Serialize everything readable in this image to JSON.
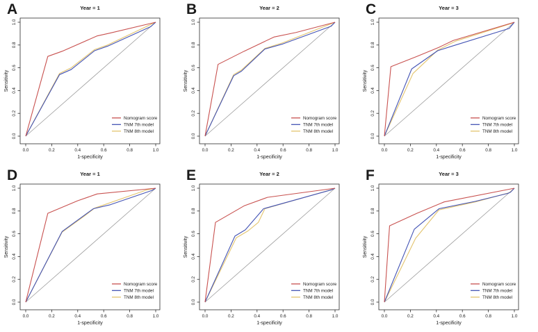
{
  "figure": {
    "background": "#ffffff",
    "axis": {
      "x_label": "1-specificity",
      "y_label": "Sensitivity",
      "tick_labels": [
        "0.0",
        "0.2",
        "0.4",
        "0.6",
        "0.8",
        "1.0"
      ],
      "tick_values": [
        0.0,
        0.2,
        0.4,
        0.6,
        0.8,
        1.0
      ],
      "x_range": [
        0,
        1
      ],
      "y_range": [
        0,
        1
      ],
      "box_color": "#2b2b2b",
      "grid": "off"
    },
    "legend": {
      "position": "bottom-right",
      "entries": [
        "Nomogram score",
        "TNM 7th model",
        "TNM 8th model"
      ]
    },
    "colors": {
      "nomogram": "#c8514f",
      "tnm7": "#4353b4",
      "tnm8": "#e3c46e",
      "reference": "#9b9b9b"
    }
  },
  "chart_data": [
    {
      "type": "line",
      "panel_label": "A",
      "title": "Year = 1",
      "xlabel": "1-specificity",
      "ylabel": "Sensitivity",
      "xlim": [
        0,
        1
      ],
      "ylim": [
        0,
        1
      ],
      "reference_line": [
        [
          0,
          0
        ],
        [
          1,
          1
        ]
      ],
      "series": [
        {
          "name": "Nomogram score",
          "color": "#c8514f",
          "points": [
            [
              0,
              0
            ],
            [
              0.17,
              0.7
            ],
            [
              0.28,
              0.745
            ],
            [
              0.55,
              0.88
            ],
            [
              0.65,
              0.905
            ],
            [
              1,
              1
            ]
          ]
        },
        {
          "name": "TNM 7th model",
          "color": "#4353b4",
          "points": [
            [
              0,
              0
            ],
            [
              0.26,
              0.54
            ],
            [
              0.35,
              0.585
            ],
            [
              0.53,
              0.75
            ],
            [
              0.63,
              0.79
            ],
            [
              0.96,
              0.96
            ],
            [
              1,
              1
            ]
          ]
        },
        {
          "name": "TNM 8th model",
          "color": "#e3c46e",
          "points": [
            [
              0,
              0
            ],
            [
              0.26,
              0.55
            ],
            [
              0.35,
              0.6
            ],
            [
              0.53,
              0.76
            ],
            [
              0.63,
              0.8
            ],
            [
              0.97,
              0.985
            ],
            [
              1,
              1
            ]
          ]
        }
      ]
    },
    {
      "type": "line",
      "panel_label": "B",
      "title": "Year = 2",
      "xlabel": "1-specificity",
      "ylabel": "Sensitivity",
      "xlim": [
        0,
        1
      ],
      "ylim": [
        0,
        1
      ],
      "reference_line": [
        [
          0,
          0
        ],
        [
          1,
          1
        ]
      ],
      "series": [
        {
          "name": "Nomogram score",
          "color": "#c8514f",
          "points": [
            [
              0,
              0
            ],
            [
              0.1,
              0.63
            ],
            [
              0.3,
              0.745
            ],
            [
              0.53,
              0.87
            ],
            [
              0.7,
              0.91
            ],
            [
              1,
              1
            ]
          ]
        },
        {
          "name": "TNM 7th model",
          "color": "#4353b4",
          "points": [
            [
              0,
              0
            ],
            [
              0.22,
              0.53
            ],
            [
              0.28,
              0.57
            ],
            [
              0.46,
              0.765
            ],
            [
              0.6,
              0.81
            ],
            [
              0.97,
              0.965
            ],
            [
              1,
              1
            ]
          ]
        },
        {
          "name": "TNM 8th model",
          "color": "#e3c46e",
          "points": [
            [
              0,
              0
            ],
            [
              0.22,
              0.54
            ],
            [
              0.28,
              0.58
            ],
            [
              0.46,
              0.77
            ],
            [
              0.6,
              0.82
            ],
            [
              1,
              1
            ]
          ]
        }
      ]
    },
    {
      "type": "line",
      "panel_label": "C",
      "title": "Year = 3",
      "xlabel": "1-specificity",
      "ylabel": "Sensitivity",
      "xlim": [
        0,
        1
      ],
      "ylim": [
        0,
        1
      ],
      "reference_line": [
        [
          0,
          0
        ],
        [
          1,
          1
        ]
      ],
      "series": [
        {
          "name": "Nomogram score",
          "color": "#c8514f",
          "points": [
            [
              0,
              0
            ],
            [
              0.05,
              0.61
            ],
            [
              0.25,
              0.7
            ],
            [
              0.42,
              0.78
            ],
            [
              0.53,
              0.84
            ],
            [
              1,
              1
            ]
          ]
        },
        {
          "name": "TNM 7th model",
          "color": "#4353b4",
          "points": [
            [
              0,
              0
            ],
            [
              0.21,
              0.59
            ],
            [
              0.41,
              0.75
            ],
            [
              0.52,
              0.79
            ],
            [
              0.96,
              0.945
            ],
            [
              1,
              1
            ]
          ]
        },
        {
          "name": "TNM 8th model",
          "color": "#e3c46e",
          "points": [
            [
              0,
              0
            ],
            [
              0.22,
              0.55
            ],
            [
              0.41,
              0.755
            ],
            [
              0.55,
              0.835
            ],
            [
              0.98,
              0.99
            ],
            [
              1,
              1
            ]
          ]
        }
      ]
    },
    {
      "type": "line",
      "panel_label": "D",
      "title": "Year = 1",
      "xlabel": "1-specificity",
      "ylabel": "Sensitivity",
      "xlim": [
        0,
        1
      ],
      "ylim": [
        0,
        1
      ],
      "reference_line": [
        [
          0,
          0
        ],
        [
          1,
          1
        ]
      ],
      "series": [
        {
          "name": "Nomogram score",
          "color": "#c8514f",
          "points": [
            [
              0,
              0
            ],
            [
              0.17,
              0.78
            ],
            [
              0.4,
              0.89
            ],
            [
              0.55,
              0.95
            ],
            [
              1,
              1
            ]
          ]
        },
        {
          "name": "TNM 7th model",
          "color": "#4353b4",
          "points": [
            [
              0,
              0
            ],
            [
              0.28,
              0.62
            ],
            [
              0.52,
              0.82
            ],
            [
              0.65,
              0.855
            ],
            [
              0.97,
              0.98
            ],
            [
              1,
              1
            ]
          ]
        },
        {
          "name": "TNM 8th model",
          "color": "#e3c46e",
          "points": [
            [
              0,
              0
            ],
            [
              0.28,
              0.615
            ],
            [
              0.45,
              0.755
            ],
            [
              0.53,
              0.825
            ],
            [
              0.93,
              0.985
            ],
            [
              1,
              1
            ]
          ]
        }
      ]
    },
    {
      "type": "line",
      "panel_label": "E",
      "title": "Year = 2",
      "xlabel": "1-specificity",
      "ylabel": "Sensitivity",
      "xlim": [
        0,
        1
      ],
      "ylim": [
        0,
        1
      ],
      "reference_line": [
        [
          0,
          0
        ],
        [
          1,
          1
        ]
      ],
      "series": [
        {
          "name": "Nomogram score",
          "color": "#c8514f",
          "points": [
            [
              0,
              0
            ],
            [
              0.08,
              0.7
            ],
            [
              0.3,
              0.845
            ],
            [
              0.48,
              0.92
            ],
            [
              1,
              1
            ]
          ]
        },
        {
          "name": "TNM 7th model",
          "color": "#4353b4",
          "points": [
            [
              0,
              0
            ],
            [
              0.23,
              0.58
            ],
            [
              0.31,
              0.635
            ],
            [
              0.45,
              0.82
            ],
            [
              0.97,
              0.985
            ],
            [
              1,
              1
            ]
          ]
        },
        {
          "name": "TNM 8th model",
          "color": "#e3c46e",
          "points": [
            [
              0,
              0
            ],
            [
              0.24,
              0.565
            ],
            [
              0.33,
              0.625
            ],
            [
              0.41,
              0.7
            ],
            [
              0.46,
              0.82
            ],
            [
              0.98,
              0.99
            ],
            [
              1,
              1
            ]
          ]
        }
      ]
    },
    {
      "type": "line",
      "panel_label": "F",
      "title": "Year = 3",
      "xlabel": "1-specificity",
      "ylabel": "Sensitivity",
      "xlim": [
        0,
        1
      ],
      "ylim": [
        0,
        1
      ],
      "reference_line": [
        [
          0,
          0
        ],
        [
          1,
          1
        ]
      ],
      "series": [
        {
          "name": "Nomogram score",
          "color": "#c8514f",
          "points": [
            [
              0,
              0
            ],
            [
              0.04,
              0.67
            ],
            [
              0.25,
              0.78
            ],
            [
              0.46,
              0.88
            ],
            [
              1,
              1
            ]
          ]
        },
        {
          "name": "TNM 7th model",
          "color": "#4353b4",
          "points": [
            [
              0,
              0
            ],
            [
              0.23,
              0.64
            ],
            [
              0.42,
              0.82
            ],
            [
              0.7,
              0.885
            ],
            [
              0.95,
              0.955
            ],
            [
              0.97,
              0.965
            ],
            [
              1,
              1
            ]
          ]
        },
        {
          "name": "TNM 8th model",
          "color": "#e3c46e",
          "points": [
            [
              0,
              0
            ],
            [
              0.24,
              0.56
            ],
            [
              0.42,
              0.81
            ],
            [
              0.7,
              0.88
            ],
            [
              0.96,
              0.96
            ],
            [
              1,
              1
            ]
          ]
        }
      ]
    }
  ]
}
